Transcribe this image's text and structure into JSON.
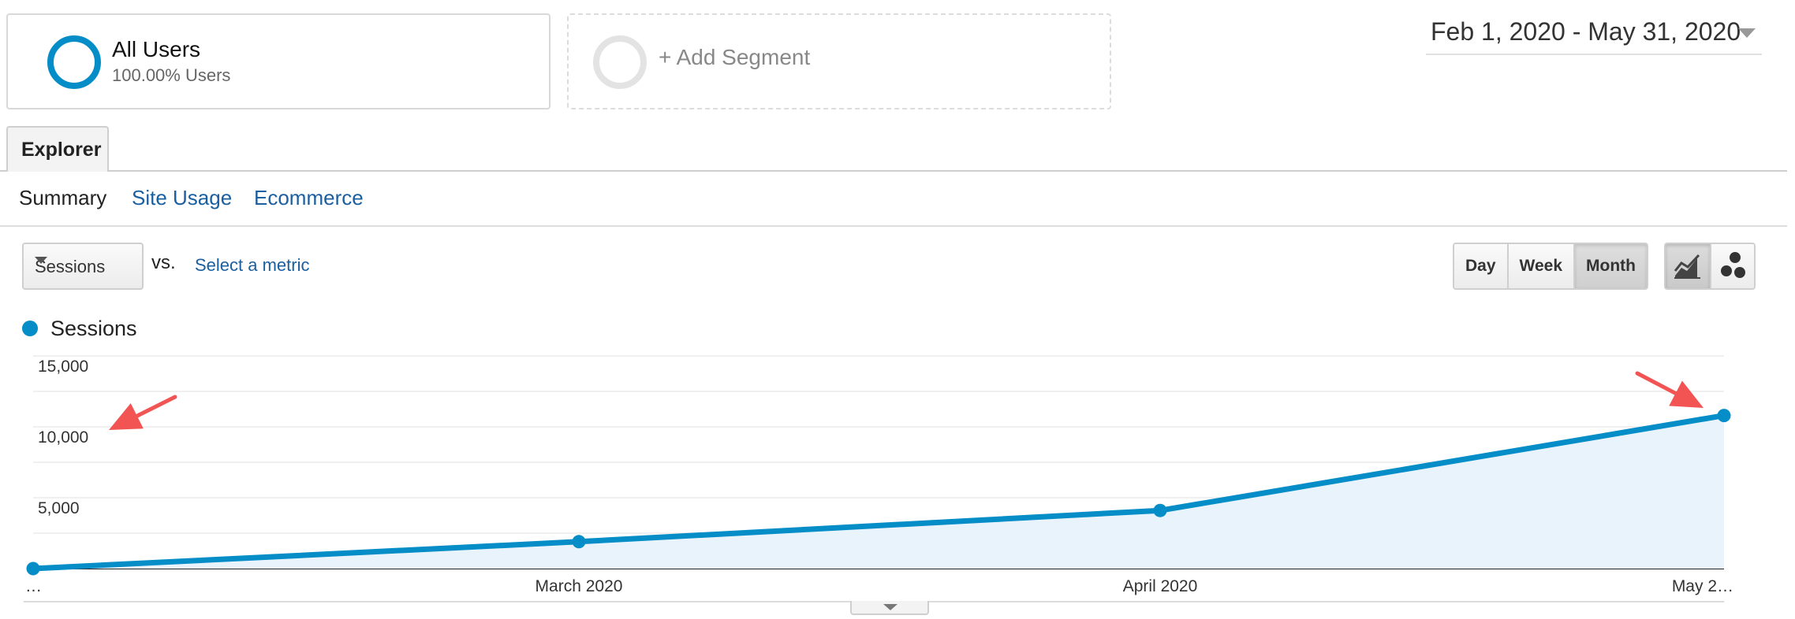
{
  "segments": {
    "all_users": {
      "name": "All Users",
      "sub": "100.00% Users"
    },
    "add_segment": {
      "label": "+ Add Segment"
    }
  },
  "date_range": {
    "label": "Feb 1, 2020 - May 31, 2020"
  },
  "tabs": {
    "explorer": "Explorer"
  },
  "subtabs": {
    "summary": "Summary",
    "site_usage": "Site Usage",
    "ecommerce": "Ecommerce"
  },
  "metric": {
    "selected": "Sessions",
    "vs": "vs.",
    "select_metric": "Select a metric"
  },
  "granularity": {
    "day": "Day",
    "week": "Week",
    "month": "Month",
    "active": "Month"
  },
  "chart_type_icons": [
    "line-chart-icon",
    "motion-chart-icon"
  ],
  "legend": {
    "label": "Sessions"
  },
  "colors": {
    "series": "#058dc7",
    "area": "#e9f3fb",
    "arrow": "#f25454"
  },
  "chart_data": {
    "type": "area",
    "x": [
      "…",
      "March 2020",
      "April 2020",
      "May 2…"
    ],
    "series": [
      {
        "name": "Sessions",
        "values": [
          0,
          1900,
          4100,
          10800
        ]
      }
    ],
    "y_ticks": [
      "15,000",
      "10,000",
      "5,000"
    ],
    "ylim": [
      0,
      15000
    ],
    "grid": true,
    "legend": "top-left",
    "annotations": [
      "red-arrow-icon",
      "red-arrow-icon"
    ]
  }
}
